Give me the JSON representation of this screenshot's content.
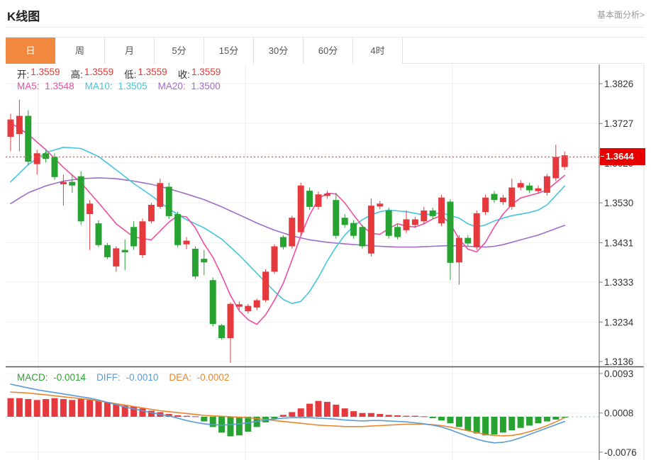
{
  "header": {
    "title": "K线图",
    "link": "基本面分析>"
  },
  "tabs": {
    "items": [
      "日",
      "周",
      "月",
      "5分",
      "15分",
      "30分",
      "60分",
      "4时"
    ],
    "active": "日"
  },
  "legend_ohlc": {
    "open_label": "开:",
    "open": "1.3559",
    "high_label": "高:",
    "high": "1.3559",
    "low_label": "低:",
    "low": "1.3559",
    "close_label": "收:",
    "close": "1.3559"
  },
  "legend_ma": {
    "ma5_label": "MA5:",
    "ma5": "1.3548",
    "ma10_label": "MA10:",
    "ma10": "1.3505",
    "ma20_label": "MA20:",
    "ma20": "1.3500"
  },
  "legend_macd": {
    "macd_label": "MACD:",
    "macd": "-0.0014",
    "diff_label": "DIFF:",
    "diff": "-0.0010",
    "dea_label": "DEA:",
    "dea": "-0.0002"
  },
  "price_marker": {
    "value": "1.3644"
  },
  "colors": {
    "up": "#e5393d",
    "down": "#26a331",
    "accent_tab": "#f0883f",
    "badge_bg": "#e60000",
    "last_price_line": "#f25555",
    "ma5": "#ec4ea2",
    "ma10": "#45c5dd",
    "ma20": "#a06cc9",
    "diff": "#5b9bd5",
    "dea": "#e8862e",
    "macd_label": "#2ca332",
    "value_red": "#e53935",
    "text": "#333333",
    "muted": "#999999"
  },
  "chart_data": {
    "type": "candlestick+macd",
    "title": "K线图",
    "interval": "日",
    "price_axis_ticks": [
      "1.3826",
      "1.3727",
      "1.3629",
      "1.3530",
      "1.3431",
      "1.3333",
      "1.3234",
      "1.3136"
    ],
    "macd_axis_ticks": [
      "0.0093",
      "0.0008",
      "-0.0076"
    ],
    "last_price": 1.3644,
    "legend": {
      "up_color_means": "close>=open",
      "down_color_means": "close<open"
    },
    "candles_format": [
      "open",
      "close",
      "high",
      "low"
    ],
    "candles": [
      [
        1.3694,
        1.3737,
        1.3751,
        1.3658
      ],
      [
        1.3701,
        1.3746,
        1.3786,
        1.3658
      ],
      [
        1.3746,
        1.3632,
        1.376,
        1.3623
      ],
      [
        1.3626,
        1.3653,
        1.3662,
        1.36
      ],
      [
        1.3653,
        1.3639,
        1.3662,
        1.363
      ],
      [
        1.3644,
        1.3594,
        1.3653,
        1.3587
      ],
      [
        1.3576,
        1.3582,
        1.36,
        1.3523
      ],
      [
        1.3582,
        1.3573,
        1.36,
        1.3555
      ],
      [
        1.3596,
        1.3484,
        1.3608,
        1.3475
      ],
      [
        1.3502,
        1.3528,
        1.3537,
        1.3413
      ],
      [
        1.3479,
        1.3425,
        1.3487,
        1.342
      ],
      [
        1.3425,
        1.3395,
        1.343,
        1.339
      ],
      [
        1.3372,
        1.3417,
        1.3422,
        1.3359
      ],
      [
        1.3413,
        1.3407,
        1.3439,
        1.3363
      ],
      [
        1.347,
        1.3422,
        1.3484,
        1.3413
      ],
      [
        1.34,
        1.3484,
        1.3491,
        1.3393
      ],
      [
        1.3484,
        1.3525,
        1.353,
        1.3479
      ],
      [
        1.352,
        1.3579,
        1.359,
        1.3515
      ],
      [
        1.357,
        1.3497,
        1.358,
        1.349
      ],
      [
        1.3502,
        1.3425,
        1.3508,
        1.342
      ],
      [
        1.3427,
        1.3436,
        1.3445,
        1.3415
      ],
      [
        1.3416,
        1.3347,
        1.3422,
        1.3341
      ],
      [
        1.3391,
        1.3382,
        1.3413,
        1.335
      ],
      [
        1.3338,
        1.3229,
        1.3345,
        1.3223
      ],
      [
        1.3226,
        1.3194,
        1.3229,
        1.319
      ],
      [
        1.3194,
        1.3279,
        1.3283,
        1.3133
      ],
      [
        1.3272,
        1.3278,
        1.3285,
        1.3265
      ],
      [
        1.3261,
        1.3274,
        1.3279,
        1.3255
      ],
      [
        1.327,
        1.3288,
        1.3292,
        1.3263
      ],
      [
        1.3288,
        1.3359,
        1.3365,
        1.3283
      ],
      [
        1.3359,
        1.3422,
        1.3427,
        1.3354
      ],
      [
        1.3445,
        1.342,
        1.345,
        1.3414
      ],
      [
        1.3422,
        1.3493,
        1.3498,
        1.3416
      ],
      [
        1.3457,
        1.3573,
        1.358,
        1.345
      ],
      [
        1.356,
        1.352,
        1.3568,
        1.3513
      ],
      [
        1.352,
        1.3551,
        1.3558,
        1.3513
      ],
      [
        1.3547,
        1.3553,
        1.356,
        1.354
      ],
      [
        1.3537,
        1.3448,
        1.3555,
        1.3441
      ],
      [
        1.3493,
        1.3475,
        1.3502,
        1.3468
      ],
      [
        1.348,
        1.3448,
        1.3487,
        1.3441
      ],
      [
        1.347,
        1.3422,
        1.3475,
        1.3416
      ],
      [
        1.3404,
        1.3523,
        1.3541,
        1.3397
      ],
      [
        1.3521,
        1.3528,
        1.3535,
        1.3514
      ],
      [
        1.3511,
        1.3448,
        1.3518,
        1.3441
      ],
      [
        1.347,
        1.3445,
        1.3477,
        1.3439
      ],
      [
        1.3462,
        1.3489,
        1.3511,
        1.3455
      ],
      [
        1.3475,
        1.3489,
        1.3495,
        1.3468
      ],
      [
        1.3484,
        1.3511,
        1.352,
        1.3477
      ],
      [
        1.3511,
        1.3497,
        1.3518,
        1.349
      ],
      [
        1.3479,
        1.3543,
        1.355,
        1.3472
      ],
      [
        1.3533,
        1.3381,
        1.3539,
        1.3338
      ],
      [
        1.3382,
        1.3443,
        1.345,
        1.3327
      ],
      [
        1.3443,
        1.3429,
        1.345,
        1.3422
      ],
      [
        1.342,
        1.3504,
        1.3511,
        1.3413
      ],
      [
        1.3507,
        1.3543,
        1.355,
        1.35
      ],
      [
        1.3552,
        1.3537,
        1.3559,
        1.353
      ],
      [
        1.3532,
        1.3543,
        1.355,
        1.3525
      ],
      [
        1.352,
        1.3568,
        1.359,
        1.3513
      ],
      [
        1.3568,
        1.3579,
        1.3586,
        1.3561
      ],
      [
        1.3573,
        1.3561,
        1.358,
        1.3554
      ],
      [
        1.3559,
        1.3566,
        1.3573,
        1.3552
      ],
      [
        1.3555,
        1.3596,
        1.3602,
        1.3548
      ],
      [
        1.3591,
        1.3644,
        1.3674,
        1.3584
      ],
      [
        1.3619,
        1.3648,
        1.3658,
        1.3612
      ]
    ],
    "ma5_points": [
      [
        1,
        1.3729
      ],
      [
        3,
        1.37
      ],
      [
        5,
        1.3662
      ],
      [
        7,
        1.3618
      ],
      [
        9,
        1.358
      ],
      [
        11,
        1.353
      ],
      [
        13,
        1.3478
      ],
      [
        15,
        1.3445
      ],
      [
        17,
        1.3438
      ],
      [
        19,
        1.3482
      ],
      [
        20,
        1.3498
      ],
      [
        21,
        1.3495
      ],
      [
        22,
        1.3468
      ],
      [
        23,
        1.3428
      ],
      [
        24,
        1.3395
      ],
      [
        25,
        1.335
      ],
      [
        26,
        1.33
      ],
      [
        27,
        1.3262
      ],
      [
        28,
        1.324
      ],
      [
        29,
        1.3228
      ],
      [
        30,
        1.3252
      ],
      [
        31,
        1.3288
      ],
      [
        32,
        1.333
      ],
      [
        33,
        1.3388
      ],
      [
        34,
        1.3448
      ],
      [
        35,
        1.35
      ],
      [
        36,
        1.354
      ],
      [
        37,
        1.3554
      ],
      [
        38,
        1.3552
      ],
      [
        39,
        1.353
      ],
      [
        40,
        1.35
      ],
      [
        41,
        1.3472
      ],
      [
        42,
        1.3454
      ],
      [
        43,
        1.3452
      ],
      [
        44,
        1.3466
      ],
      [
        45,
        1.3478
      ],
      [
        46,
        1.3472
      ],
      [
        47,
        1.347
      ],
      [
        48,
        1.3478
      ],
      [
        49,
        1.349
      ],
      [
        50,
        1.3498
      ],
      [
        51,
        1.3478
      ],
      [
        52,
        1.344
      ],
      [
        53,
        1.3415
      ],
      [
        54,
        1.3408
      ],
      [
        55,
        1.3432
      ],
      [
        56,
        1.347
      ],
      [
        57,
        1.3502
      ],
      [
        58,
        1.3526
      ],
      [
        59,
        1.3542
      ],
      [
        60,
        1.3548
      ],
      [
        61,
        1.3554
      ],
      [
        62,
        1.3562
      ],
      [
        63,
        1.358
      ],
      [
        64,
        1.3598
      ]
    ],
    "ma10_points": [
      [
        1,
        1.3582
      ],
      [
        3,
        1.3625
      ],
      [
        5,
        1.3655
      ],
      [
        7,
        1.3668
      ],
      [
        9,
        1.3665
      ],
      [
        11,
        1.3645
      ],
      [
        13,
        1.3612
      ],
      [
        15,
        1.3578
      ],
      [
        17,
        1.3548
      ],
      [
        19,
        1.3515
      ],
      [
        21,
        1.3488
      ],
      [
        23,
        1.3468
      ],
      [
        25,
        1.344
      ],
      [
        27,
        1.34
      ],
      [
        29,
        1.3355
      ],
      [
        31,
        1.331
      ],
      [
        32,
        1.329
      ],
      [
        33,
        1.328
      ],
      [
        34,
        1.3285
      ],
      [
        35,
        1.331
      ],
      [
        36,
        1.3345
      ],
      [
        37,
        1.3385
      ],
      [
        38,
        1.342
      ],
      [
        39,
        1.345
      ],
      [
        40,
        1.3472
      ],
      [
        41,
        1.3488
      ],
      [
        42,
        1.35
      ],
      [
        43,
        1.3508
      ],
      [
        44,
        1.3512
      ],
      [
        46,
        1.3508
      ],
      [
        48,
        1.35
      ],
      [
        50,
        1.3505
      ],
      [
        52,
        1.3492
      ],
      [
        53,
        1.3478
      ],
      [
        54,
        1.347
      ],
      [
        55,
        1.3475
      ],
      [
        56,
        1.3485
      ],
      [
        57,
        1.3492
      ],
      [
        58,
        1.3498
      ],
      [
        59,
        1.3502
      ],
      [
        60,
        1.3506
      ],
      [
        61,
        1.3512
      ],
      [
        62,
        1.3525
      ],
      [
        63,
        1.3548
      ],
      [
        64,
        1.3572
      ]
    ],
    "ma20_points": [
      [
        1,
        1.3528
      ],
      [
        3,
        1.3555
      ],
      [
        5,
        1.3572
      ],
      [
        7,
        1.3584
      ],
      [
        9,
        1.359
      ],
      [
        11,
        1.3592
      ],
      [
        13,
        1.359
      ],
      [
        15,
        1.3584
      ],
      [
        17,
        1.3576
      ],
      [
        19,
        1.3565
      ],
      [
        21,
        1.3552
      ],
      [
        23,
        1.3538
      ],
      [
        25,
        1.352
      ],
      [
        27,
        1.35
      ],
      [
        29,
        1.348
      ],
      [
        31,
        1.3462
      ],
      [
        33,
        1.3448
      ],
      [
        35,
        1.3438
      ],
      [
        37,
        1.3432
      ],
      [
        39,
        1.3428
      ],
      [
        41,
        1.3425
      ],
      [
        43,
        1.3422
      ],
      [
        45,
        1.342
      ],
      [
        47,
        1.342
      ],
      [
        49,
        1.3422
      ],
      [
        51,
        1.3424
      ],
      [
        53,
        1.3422
      ],
      [
        55,
        1.342
      ],
      [
        56,
        1.3422
      ],
      [
        57,
        1.3426
      ],
      [
        58,
        1.3432
      ],
      [
        59,
        1.3438
      ],
      [
        60,
        1.3444
      ],
      [
        61,
        1.345
      ],
      [
        62,
        1.3458
      ],
      [
        63,
        1.3466
      ],
      [
        64,
        1.3474
      ]
    ],
    "macd_hist": [
      0.004,
      0.004,
      0.0038,
      0.0036,
      0.0038,
      0.004,
      0.0038,
      0.0036,
      0.0038,
      0.0036,
      0.0034,
      0.0031,
      0.0028,
      0.0024,
      0.0022,
      0.0018,
      0.0013,
      0.001,
      0.0006,
      0.0003,
      0.0002,
      0.0001,
      -0.001,
      -0.0022,
      -0.0034,
      -0.0042,
      -0.004,
      -0.0032,
      -0.0022,
      -0.0012,
      -0.0004,
      0.0004,
      0.001,
      0.0018,
      0.0028,
      0.0034,
      0.0032,
      0.0026,
      0.0018,
      0.0012,
      0.0008,
      0.0008,
      0.0006,
      0.0004,
      0.0003,
      0.0002,
      0.0002,
      0.0001,
      -0.0003,
      -0.0008,
      -0.0014,
      -0.0022,
      -0.003,
      -0.0036,
      -0.004,
      -0.0038,
      -0.0034,
      -0.0029,
      -0.0024,
      -0.0019,
      -0.0014,
      -0.001,
      -0.0006,
      -0.0002
    ],
    "diff_line": [
      0.007,
      0.0066,
      0.0062,
      0.0058,
      0.0055,
      0.0052,
      0.0049,
      0.0046,
      0.0043,
      0.004,
      0.0036,
      0.0031,
      0.0026,
      0.0021,
      0.0017,
      0.0013,
      0.0009,
      0.0005,
      0.0002,
      -0.0003,
      -0.0008,
      -0.0012,
      -0.0015,
      -0.0017,
      -0.0018,
      -0.0017,
      -0.0015,
      -0.0013,
      -0.001,
      -0.0007,
      -0.0005,
      -0.0003,
      -0.0002,
      -0.0002,
      -0.0002,
      -0.0003,
      -0.0004,
      -0.0005,
      -0.0007,
      -0.0008,
      -0.0009,
      -0.0008,
      -0.0008,
      -0.0009,
      -0.001,
      -0.0011,
      -0.0013,
      -0.0015,
      -0.0018,
      -0.0022,
      -0.0028,
      -0.0035,
      -0.0042,
      -0.0048,
      -0.0053,
      -0.0056,
      -0.0055,
      -0.0051,
      -0.0045,
      -0.0038,
      -0.0031,
      -0.0024,
      -0.0017,
      -0.001
    ],
    "dea_line": [
      0.0053,
      0.0052,
      0.0051,
      0.0049,
      0.0047,
      0.0045,
      0.0043,
      0.0041,
      0.0039,
      0.0037,
      0.0034,
      0.0031,
      0.0028,
      0.0025,
      0.0022,
      0.0019,
      0.0016,
      0.0013,
      0.0011,
      0.0009,
      0.0007,
      0.0005,
      0.0003,
      0.0002,
      0.0001,
      0.0,
      -0.0001,
      -0.0002,
      -0.0004,
      -0.0006,
      -0.0008,
      -0.001,
      -0.0012,
      -0.0014,
      -0.0016,
      -0.0018,
      -0.0019,
      -0.002,
      -0.0021,
      -0.0021,
      -0.0021,
      -0.002,
      -0.0019,
      -0.0018,
      -0.0017,
      -0.0016,
      -0.0016,
      -0.0016,
      -0.0017,
      -0.0019,
      -0.0022,
      -0.0026,
      -0.003,
      -0.0034,
      -0.0038,
      -0.004,
      -0.0041,
      -0.004,
      -0.0037,
      -0.0032,
      -0.0026,
      -0.0019,
      -0.0011,
      -0.0002
    ]
  }
}
